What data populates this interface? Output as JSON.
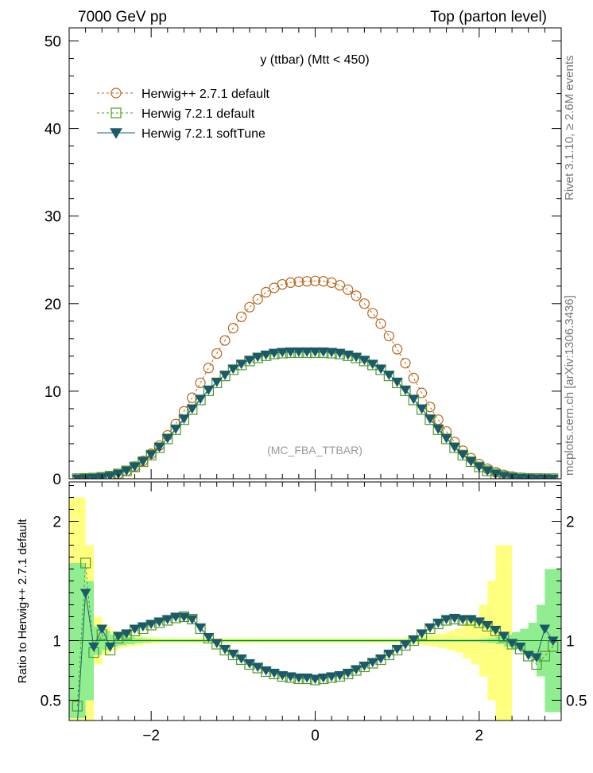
{
  "header": {
    "left": "7000 GeV pp",
    "right": "Top (parton level)"
  },
  "sidebar": {
    "top": "Rivet 3.1.10, ≥ 2.6M events",
    "bottom": "mcplots.cern.ch [arXiv:1306.3436]"
  },
  "chart_data": [
    {
      "type": "scatter",
      "panel": "main",
      "title": "y (ttbar) (Mtt < 450)",
      "watermark": "(MC_FBA_TTBAR)",
      "xlim": [
        -3.0,
        3.0
      ],
      "ylim": [
        0,
        51.5
      ],
      "yticks": [
        0,
        10,
        20,
        30,
        40,
        50
      ],
      "legend_placement": "top-left",
      "x": [
        -2.9,
        -2.8,
        -2.7,
        -2.6,
        -2.5,
        -2.4,
        -2.3,
        -2.2,
        -2.1,
        -2.0,
        -1.9,
        -1.8,
        -1.7,
        -1.6,
        -1.5,
        -1.4,
        -1.3,
        -1.2,
        -1.1,
        -1.0,
        -0.9,
        -0.8,
        -0.7,
        -0.6,
        -0.5,
        -0.4,
        -0.3,
        -0.2,
        -0.1,
        0.0,
        0.1,
        0.2,
        0.3,
        0.4,
        0.5,
        0.6,
        0.7,
        0.8,
        0.9,
        1.0,
        1.1,
        1.2,
        1.3,
        1.4,
        1.5,
        1.6,
        1.7,
        1.8,
        1.9,
        2.0,
        2.1,
        2.2,
        2.3,
        2.4,
        2.5,
        2.6,
        2.7,
        2.8,
        2.9
      ],
      "series": [
        {
          "name": "Herwig++ 2.7.1 default",
          "color": "#b8651b",
          "marker": "open-circle",
          "line": "dashed",
          "values": [
            0.01,
            0.03,
            0.08,
            0.17,
            0.31,
            0.55,
            0.9,
            1.4,
            2.05,
            2.85,
            3.8,
            4.95,
            6.25,
            7.7,
            9.25,
            10.95,
            12.65,
            14.3,
            15.8,
            17.2,
            18.5,
            19.6,
            20.5,
            21.3,
            21.8,
            22.2,
            22.4,
            22.5,
            22.55,
            22.6,
            22.55,
            22.4,
            22.1,
            21.6,
            20.9,
            20.0,
            18.9,
            17.7,
            16.3,
            14.8,
            13.2,
            11.5,
            9.8,
            8.2,
            6.75,
            5.4,
            4.2,
            3.2,
            2.35,
            1.68,
            1.15,
            0.75,
            0.45,
            0.25,
            0.12,
            0.05,
            0.02,
            0.01,
            0.005
          ]
        },
        {
          "name": "Herwig 7.2.1 default",
          "color": "#4f9a28",
          "marker": "open-square",
          "line": "dashed",
          "values": [
            0.01,
            0.04,
            0.08,
            0.16,
            0.3,
            0.55,
            0.9,
            1.35,
            1.95,
            2.7,
            3.55,
            4.55,
            5.6,
            6.75,
            7.9,
            9.0,
            10.05,
            10.95,
            11.75,
            12.45,
            13.0,
            13.45,
            13.8,
            14.05,
            14.25,
            14.35,
            14.4,
            14.4,
            14.4,
            14.4,
            14.4,
            14.35,
            14.25,
            14.05,
            13.8,
            13.45,
            13.0,
            12.45,
            11.75,
            10.95,
            10.05,
            9.0,
            7.9,
            6.75,
            5.6,
            4.55,
            3.55,
            2.7,
            1.95,
            1.35,
            0.9,
            0.55,
            0.3,
            0.16,
            0.08,
            0.04,
            0.02,
            0.01,
            0.005
          ]
        },
        {
          "name": "Herwig 7.2.1 softTune",
          "color": "#1b5a6a",
          "marker": "filled-triangle-down",
          "line": "solid",
          "values": [
            0.01,
            0.04,
            0.09,
            0.17,
            0.32,
            0.57,
            0.93,
            1.4,
            2.0,
            2.77,
            3.63,
            4.64,
            5.7,
            6.86,
            8.02,
            9.12,
            10.17,
            11.07,
            11.87,
            12.57,
            13.12,
            13.57,
            13.92,
            14.17,
            14.37,
            14.47,
            14.52,
            14.52,
            14.52,
            14.52,
            14.52,
            14.47,
            14.37,
            14.17,
            13.92,
            13.57,
            13.12,
            12.57,
            11.87,
            11.07,
            10.17,
            9.12,
            8.02,
            6.86,
            5.7,
            4.64,
            3.63,
            2.77,
            2.0,
            1.4,
            0.93,
            0.57,
            0.32,
            0.17,
            0.09,
            0.04,
            0.02,
            0.01,
            0.005
          ]
        }
      ]
    },
    {
      "type": "scatter",
      "panel": "ratio",
      "ylabel": "Ratio to Herwig++ 2.7.1 default",
      "xlim": [
        -3.0,
        3.0
      ],
      "ylim": [
        0.33,
        2.33
      ],
      "yticks": [
        0.5,
        1,
        2
      ],
      "xticks": [
        -2,
        0,
        2
      ],
      "x": [
        -2.9,
        -2.8,
        -2.7,
        -2.6,
        -2.5,
        -2.4,
        -2.3,
        -2.2,
        -2.1,
        -2.0,
        -1.9,
        -1.8,
        -1.7,
        -1.6,
        -1.5,
        -1.4,
        -1.3,
        -1.2,
        -1.1,
        -1.0,
        -0.9,
        -0.8,
        -0.7,
        -0.6,
        -0.5,
        -0.4,
        -0.3,
        -0.2,
        -0.1,
        0.0,
        0.1,
        0.2,
        0.3,
        0.4,
        0.5,
        0.6,
        0.7,
        0.8,
        0.9,
        1.0,
        1.1,
        1.2,
        1.3,
        1.4,
        1.5,
        1.6,
        1.7,
        1.8,
        1.9,
        2.0,
        2.1,
        2.2,
        2.3,
        2.4,
        2.5,
        2.6,
        2.7,
        2.8,
        2.9
      ],
      "band_stat_half_width": [
        0.65,
        0.5,
        0.12,
        0.08,
        0.05,
        0.04,
        0.03,
        0.02,
        0.015,
        0.01,
        0.01,
        0.01,
        0.01,
        0.01,
        0.01,
        0.01,
        0.01,
        0.01,
        0.01,
        0.01,
        0.01,
        0.01,
        0.01,
        0.01,
        0.01,
        0.01,
        0.01,
        0.01,
        0.01,
        0.01,
        0.01,
        0.01,
        0.01,
        0.01,
        0.01,
        0.01,
        0.01,
        0.01,
        0.01,
        0.01,
        0.01,
        0.01,
        0.01,
        0.01,
        0.01,
        0.01,
        0.01,
        0.01,
        0.01,
        0.01,
        0.015,
        0.02,
        0.03,
        0.05,
        0.07,
        0.1,
        0.15,
        0.3,
        0.6
      ],
      "band_total_half_width": [
        1.2,
        0.8,
        0.2,
        0.12,
        0.08,
        0.06,
        0.05,
        0.04,
        0.03,
        0.025,
        0.02,
        0.02,
        0.02,
        0.02,
        0.02,
        0.02,
        0.02,
        0.02,
        0.02,
        0.02,
        0.02,
        0.02,
        0.02,
        0.02,
        0.02,
        0.02,
        0.02,
        0.02,
        0.02,
        0.02,
        0.02,
        0.02,
        0.02,
        0.02,
        0.02,
        0.02,
        0.02,
        0.02,
        0.02,
        0.02,
        0.02,
        0.025,
        0.03,
        0.04,
        0.05,
        0.06,
        0.08,
        0.1,
        0.15,
        0.2,
        0.3,
        0.5,
        0.8,
        0.03,
        0.035,
        0.04,
        0.05,
        0.07,
        0.1
      ],
      "series": [
        {
          "name": "Herwig 7.2.1 default",
          "color": "#4f9a28",
          "marker": "open-square",
          "values": [
            0.45,
            1.65,
            0.9,
            1.05,
            0.92,
            1.02,
            1.05,
            1.08,
            1.1,
            1.13,
            1.15,
            1.17,
            1.19,
            1.2,
            1.18,
            1.1,
            1.02,
            0.97,
            0.92,
            0.88,
            0.84,
            0.8,
            0.77,
            0.74,
            0.72,
            0.7,
            0.69,
            0.68,
            0.68,
            0.67,
            0.68,
            0.69,
            0.7,
            0.72,
            0.75,
            0.78,
            0.81,
            0.84,
            0.88,
            0.92,
            0.96,
            1.0,
            1.05,
            1.1,
            1.14,
            1.17,
            1.18,
            1.17,
            1.17,
            1.15,
            1.12,
            1.08,
            1.03,
            0.97,
            0.93,
            0.87,
            0.8,
            0.87,
            0.95
          ]
        },
        {
          "name": "Herwig 7.2.1 softTune",
          "color": "#1b5a6a",
          "marker": "filled-triangle-down",
          "values": [
            0.3,
            1.4,
            0.95,
            1.1,
            0.95,
            1.04,
            1.06,
            1.1,
            1.12,
            1.14,
            1.16,
            1.18,
            1.2,
            1.2,
            1.18,
            1.11,
            1.03,
            0.98,
            0.93,
            0.89,
            0.85,
            0.81,
            0.78,
            0.75,
            0.73,
            0.71,
            0.7,
            0.69,
            0.69,
            0.68,
            0.69,
            0.7,
            0.71,
            0.73,
            0.76,
            0.79,
            0.82,
            0.85,
            0.89,
            0.93,
            0.97,
            1.01,
            1.06,
            1.11,
            1.15,
            1.18,
            1.19,
            1.18,
            1.18,
            1.16,
            1.13,
            1.09,
            1.04,
            0.98,
            0.95,
            0.88,
            0.86,
            1.1,
            1.0
          ]
        }
      ]
    }
  ]
}
